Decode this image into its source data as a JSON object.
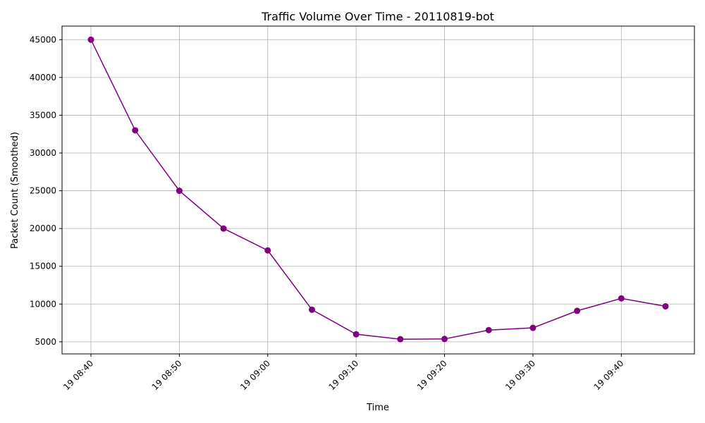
{
  "chart_data": {
    "type": "line",
    "title": "Traffic Volume Over Time - 20110819-bot",
    "xlabel": "Time",
    "ylabel": "Packet Count (Smoothed)",
    "x": [
      "19 08:40",
      "19 08:45",
      "19 08:50",
      "19 08:55",
      "19 09:00",
      "19 09:05",
      "19 09:10",
      "19 09:15",
      "19 09:20",
      "19 09:25",
      "19 09:30",
      "19 09:35",
      "19 09:40",
      "19 09:45"
    ],
    "xticks": [
      "19 08:40",
      "19 08:50",
      "19 09:00",
      "19 09:10",
      "19 09:20",
      "19 09:30",
      "19 09:40"
    ],
    "yticks": [
      5000,
      10000,
      15000,
      20000,
      25000,
      30000,
      35000,
      40000,
      45000
    ],
    "ylim": [
      3400,
      46800
    ],
    "grid": true,
    "series": [
      {
        "name": "",
        "color": "#800080",
        "marker": "circle",
        "values": [
          45000,
          33000,
          25000,
          20000,
          17100,
          9250,
          6000,
          5350,
          5380,
          6550,
          6850,
          9100,
          10750,
          9700
        ]
      }
    ]
  }
}
